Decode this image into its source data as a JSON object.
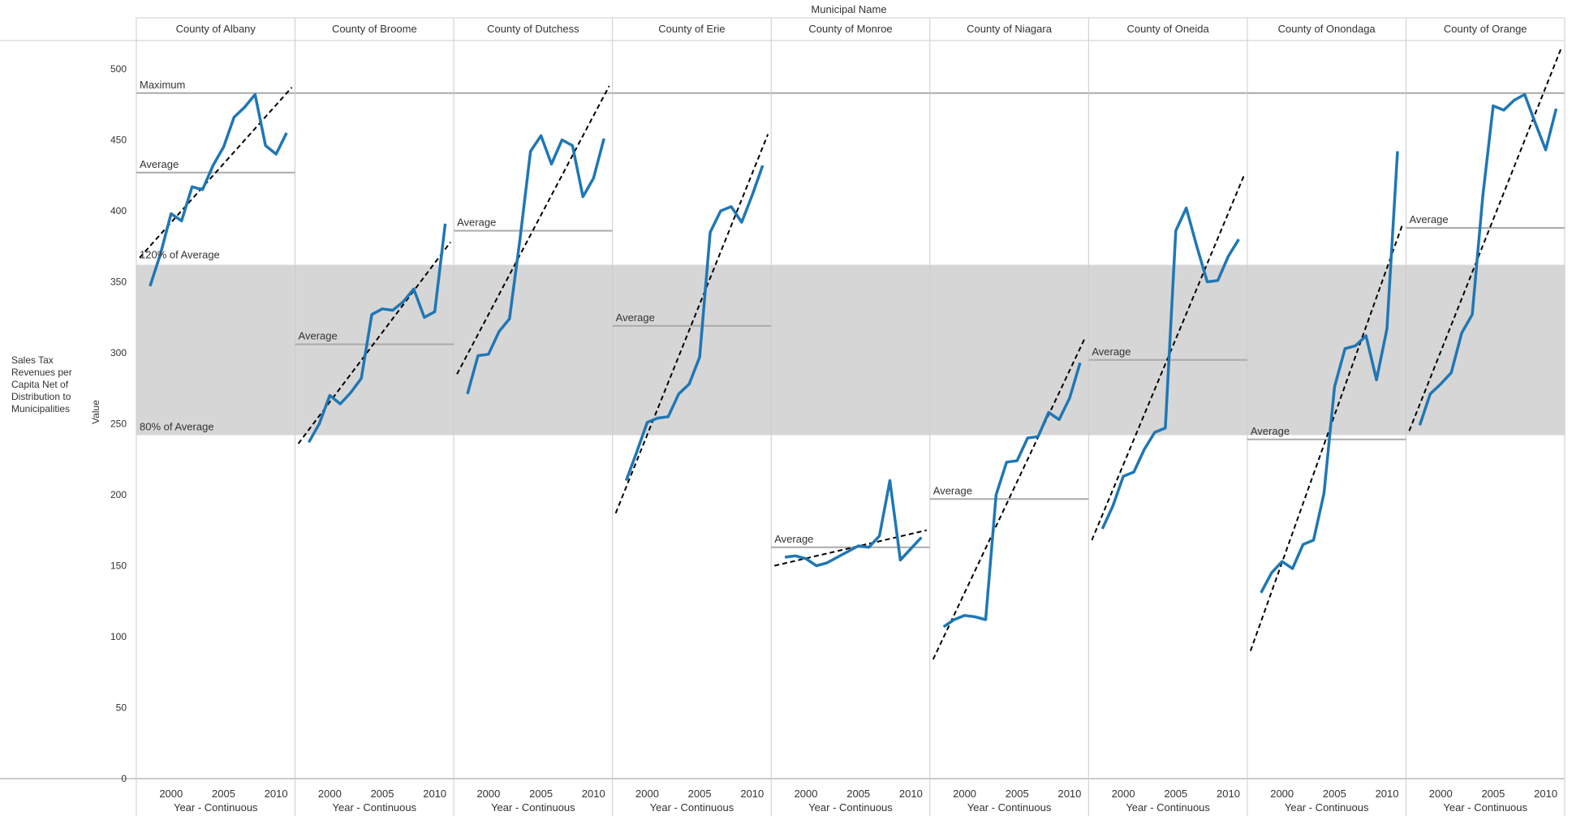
{
  "chart_data": {
    "type": "line",
    "title": "Municipal Name",
    "row_header": "Sales Tax Revenues per Capita Net of Distribution to Municipalities",
    "ylabel": "Value",
    "xlabel": "Year - Continuous",
    "ylim": [
      0,
      520
    ],
    "yticks": [
      0,
      50,
      100,
      150,
      200,
      250,
      300,
      350,
      400,
      450,
      500
    ],
    "xlim": [
      1997,
      2011.5
    ],
    "xticks": [
      2000,
      2005,
      2010
    ],
    "reference_lines": {
      "maximum_label": "Maximum",
      "maximum_value": 483,
      "average_label": "Average",
      "band_upper_label": "120% of Average",
      "band_upper_value": 362,
      "band_lower_label": "80% of Average",
      "band_lower_value": 242
    },
    "colors": {
      "line": "#1f77b4",
      "band": "#d6d6d6",
      "trend": "#000000",
      "reference": "#aaaaaa",
      "grid": "#cccccc"
    },
    "panels": [
      {
        "name": "County of Albany",
        "average": 427,
        "x": [
          1998,
          1999,
          2000,
          2001,
          2002,
          2003,
          2004,
          2005,
          2006,
          2007,
          2008,
          2009,
          2010,
          2011
        ],
        "values": [
          347,
          370,
          398,
          393,
          417,
          415,
          432,
          445,
          466,
          473,
          482,
          446,
          440,
          455
        ],
        "trend": [
          367,
          487
        ]
      },
      {
        "name": "County of Broome",
        "average": 306,
        "x": [
          1998,
          1999,
          2000,
          2001,
          2002,
          2003,
          2004,
          2005,
          2006,
          2007,
          2008,
          2009,
          2010,
          2011
        ],
        "values": [
          237,
          250,
          270,
          264,
          272,
          282,
          327,
          331,
          330,
          336,
          345,
          325,
          329,
          391
        ],
        "trend": [
          236,
          378
        ]
      },
      {
        "name": "County of Dutchess",
        "average": 386,
        "x": [
          1998,
          1999,
          2000,
          2001,
          2002,
          2003,
          2004,
          2005,
          2006,
          2007,
          2008,
          2009,
          2010,
          2011
        ],
        "values": [
          271,
          298,
          299,
          315,
          324,
          380,
          442,
          453,
          433,
          450,
          446,
          410,
          423,
          451
        ],
        "trend": [
          285,
          488
        ]
      },
      {
        "name": "County of Erie",
        "average": 319,
        "x": [
          1998,
          1999,
          2000,
          2001,
          2002,
          2003,
          2004,
          2005,
          2006,
          2007,
          2008,
          2009,
          2010,
          2011
        ],
        "values": [
          210,
          230,
          251,
          254,
          255,
          271,
          278,
          297,
          385,
          400,
          403,
          392,
          411,
          432
        ],
        "trend": [
          187,
          454
        ]
      },
      {
        "name": "County of Monroe",
        "average": 163,
        "x": [
          1998,
          1999,
          2000,
          2001,
          2002,
          2003,
          2004,
          2005,
          2006,
          2007,
          2008,
          2009,
          2010,
          2011
        ],
        "values": [
          156,
          157,
          155,
          150,
          152,
          156,
          160,
          164,
          163,
          171,
          210,
          154,
          162,
          170
        ],
        "trend": [
          150,
          175
        ]
      },
      {
        "name": "County of Niagara",
        "average": 197,
        "x": [
          1998,
          1999,
          2000,
          2001,
          2002,
          2003,
          2004,
          2005,
          2006,
          2007,
          2008,
          2009,
          2010,
          2011
        ],
        "values": [
          107,
          112,
          115,
          114,
          112,
          200,
          223,
          224,
          240,
          241,
          258,
          253,
          268,
          293
        ],
        "trend": [
          84,
          311
        ]
      },
      {
        "name": "County of Oneida",
        "average": 295,
        "x": [
          1998,
          1999,
          2000,
          2001,
          2002,
          2003,
          2004,
          2005,
          2006,
          2007,
          2008,
          2009,
          2010,
          2011
        ],
        "values": [
          176,
          192,
          213,
          216,
          232,
          244,
          247,
          386,
          402,
          375,
          350,
          351,
          368,
          380
        ],
        "trend": [
          168,
          425
        ]
      },
      {
        "name": "County of Onondaga",
        "average": 239,
        "x": [
          1998,
          1999,
          2000,
          2001,
          2002,
          2003,
          2004,
          2005,
          2006,
          2007,
          2008,
          2009,
          2010,
          2011
        ],
        "values": [
          131,
          145,
          153,
          148,
          165,
          168,
          201,
          276,
          303,
          305,
          312,
          281,
          317,
          442
        ],
        "trend": [
          90,
          391
        ]
      },
      {
        "name": "County of Orange",
        "average": 388,
        "x": [
          1998,
          1999,
          2000,
          2001,
          2002,
          2003,
          2004,
          2005,
          2006,
          2007,
          2008,
          2009,
          2010,
          2011
        ],
        "values": [
          249,
          271,
          278,
          286,
          314,
          327,
          410,
          474,
          471,
          478,
          482,
          462,
          443,
          472
        ],
        "trend": [
          245,
          515
        ]
      }
    ]
  }
}
